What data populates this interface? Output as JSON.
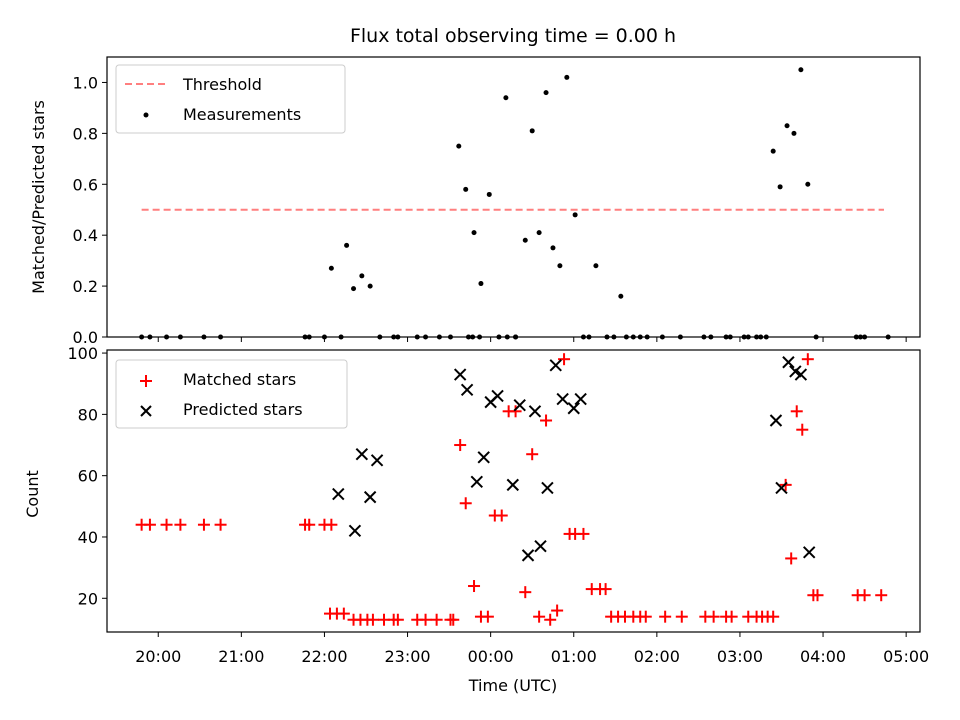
{
  "chart_data": [
    {
      "type": "scatter",
      "title": "Flux total observing time = 0.00 h",
      "xlabel": "",
      "ylabel": "Matched/Predicted stars",
      "xlim": [
        "19:23",
        "05:10"
      ],
      "ylim": [
        0,
        1.1
      ],
      "yticks": [
        0.0,
        0.2,
        0.4,
        0.6,
        0.8,
        1.0
      ],
      "ytick_labels": [
        "0.0",
        "0.2",
        "0.4",
        "0.6",
        "0.8",
        "1.0"
      ],
      "legend": "top-left",
      "grid": false,
      "series": [
        {
          "name": "Threshold",
          "kind": "line",
          "style": "dashed",
          "color": "#ff7f7f",
          "x": [
            "19:48",
            "04:44"
          ],
          "y": [
            0.5,
            0.5
          ]
        },
        {
          "name": "Measurements",
          "kind": "scatter",
          "marker": "dot",
          "color": "#000000",
          "points": [
            [
              "19:48",
              0
            ],
            [
              "19:54",
              0
            ],
            [
              "20:06",
              0
            ],
            [
              "20:16",
              0
            ],
            [
              "20:33",
              0
            ],
            [
              "20:45",
              0
            ],
            [
              "21:46",
              0
            ],
            [
              "21:49",
              0
            ],
            [
              "22:00",
              0
            ],
            [
              "22:12",
              0
            ],
            [
              "22:05",
              0.27
            ],
            [
              "22:16",
              0.36
            ],
            [
              "22:21",
              0.19
            ],
            [
              "22:27",
              0.24
            ],
            [
              "22:33",
              0.2
            ],
            [
              "22:40",
              0
            ],
            [
              "22:50",
              0
            ],
            [
              "22:53",
              0
            ],
            [
              "23:07",
              0
            ],
            [
              "23:13",
              0
            ],
            [
              "23:23",
              0
            ],
            [
              "23:31",
              0
            ],
            [
              "23:44",
              0
            ],
            [
              "23:47",
              0
            ],
            [
              "23:52",
              0
            ],
            [
              "23:37",
              0.75
            ],
            [
              "23:42",
              0.58
            ],
            [
              "23:48",
              0.41
            ],
            [
              "23:53",
              0.21
            ],
            [
              "23:59",
              0.56
            ],
            [
              "00:06",
              0
            ],
            [
              "00:12",
              0
            ],
            [
              "00:18",
              0
            ],
            [
              "00:11",
              0.94
            ],
            [
              "00:18",
              0
            ],
            [
              "00:25",
              0.38
            ],
            [
              "00:30",
              0.81
            ],
            [
              "00:35",
              0.41
            ],
            [
              "00:40",
              0.96
            ],
            [
              "00:45",
              0.35
            ],
            [
              "00:50",
              0.28
            ],
            [
              "00:55",
              1.02
            ],
            [
              "01:01",
              0.48
            ],
            [
              "01:07",
              0
            ],
            [
              "01:11",
              0
            ],
            [
              "01:16",
              0.28
            ],
            [
              "01:24",
              0
            ],
            [
              "01:29",
              0
            ],
            [
              "01:34",
              0.16
            ],
            [
              "01:38",
              0
            ],
            [
              "01:43",
              0
            ],
            [
              "01:48",
              0
            ],
            [
              "01:53",
              0
            ],
            [
              "02:04",
              0
            ],
            [
              "02:17",
              0
            ],
            [
              "02:34",
              0
            ],
            [
              "02:39",
              0
            ],
            [
              "02:50",
              0
            ],
            [
              "02:53",
              0
            ],
            [
              "03:03",
              0
            ],
            [
              "03:06",
              0
            ],
            [
              "03:12",
              0
            ],
            [
              "03:15",
              0
            ],
            [
              "03:19",
              0
            ],
            [
              "03:24",
              0.73
            ],
            [
              "03:29",
              0.59
            ],
            [
              "03:34",
              0.83
            ],
            [
              "03:39",
              0.8
            ],
            [
              "03:44",
              1.05
            ],
            [
              "03:49",
              0.6
            ],
            [
              "03:55",
              0
            ],
            [
              "04:24",
              0
            ],
            [
              "04:27",
              0
            ],
            [
              "04:30",
              0
            ],
            [
              "04:47",
              0
            ]
          ]
        }
      ]
    },
    {
      "type": "scatter",
      "title": "",
      "xlabel": "Time (UTC)",
      "ylabel": "Count",
      "xlim": [
        "19:23",
        "05:10"
      ],
      "ylim": [
        9,
        101
      ],
      "yticks": [
        20,
        40,
        60,
        80,
        100
      ],
      "ytick_labels": [
        "20",
        "40",
        "60",
        "80",
        "100"
      ],
      "xticks": [
        "20:00",
        "21:00",
        "22:00",
        "23:00",
        "00:00",
        "01:00",
        "02:00",
        "03:00",
        "04:00",
        "05:00"
      ],
      "xtick_labels": [
        "20:00",
        "21:00",
        "22:00",
        "23:00",
        "00:00",
        "01:00",
        "02:00",
        "03:00",
        "04:00",
        "05:00"
      ],
      "legend": "top-left",
      "grid": false,
      "series": [
        {
          "name": "Matched stars",
          "kind": "scatter",
          "marker": "plus",
          "color": "#ff0000",
          "points": [
            [
              "19:48",
              44
            ],
            [
              "19:54",
              44
            ],
            [
              "20:06",
              44
            ],
            [
              "20:16",
              44
            ],
            [
              "20:33",
              44
            ],
            [
              "20:45",
              44
            ],
            [
              "21:46",
              44
            ],
            [
              "21:49",
              44
            ],
            [
              "22:00",
              44
            ],
            [
              "22:05",
              44
            ],
            [
              "22:04",
              15
            ],
            [
              "22:09",
              15
            ],
            [
              "22:14",
              15
            ],
            [
              "22:21",
              13
            ],
            [
              "22:26",
              13
            ],
            [
              "22:31",
              13
            ],
            [
              "22:35",
              13
            ],
            [
              "22:43",
              13
            ],
            [
              "22:50",
              13
            ],
            [
              "22:53",
              13
            ],
            [
              "23:07",
              13
            ],
            [
              "23:13",
              13
            ],
            [
              "23:21",
              13
            ],
            [
              "23:31",
              13
            ],
            [
              "23:33",
              13
            ],
            [
              "23:38",
              70
            ],
            [
              "23:42",
              51
            ],
            [
              "23:48",
              24
            ],
            [
              "23:53",
              14
            ],
            [
              "23:58",
              14
            ],
            [
              "00:03",
              47
            ],
            [
              "00:08",
              47
            ],
            [
              "00:13",
              81
            ],
            [
              "00:18",
              81
            ],
            [
              "00:25",
              22
            ],
            [
              "00:30",
              67
            ],
            [
              "00:35",
              14
            ],
            [
              "00:40",
              78
            ],
            [
              "00:43",
              13
            ],
            [
              "00:48",
              16
            ],
            [
              "00:53",
              98
            ],
            [
              "00:57",
              41
            ],
            [
              "01:01",
              41
            ],
            [
              "01:07",
              41
            ],
            [
              "01:13",
              23
            ],
            [
              "01:19",
              23
            ],
            [
              "01:23",
              23
            ],
            [
              "01:27",
              14
            ],
            [
              "01:32",
              14
            ],
            [
              "01:37",
              14
            ],
            [
              "01:43",
              14
            ],
            [
              "01:48",
              14
            ],
            [
              "01:52",
              14
            ],
            [
              "02:06",
              14
            ],
            [
              "02:18",
              14
            ],
            [
              "02:35",
              14
            ],
            [
              "02:41",
              14
            ],
            [
              "02:50",
              14
            ],
            [
              "02:54",
              14
            ],
            [
              "03:06",
              14
            ],
            [
              "03:12",
              14
            ],
            [
              "03:16",
              14
            ],
            [
              "03:20",
              14
            ],
            [
              "03:24",
              14
            ],
            [
              "03:33",
              57
            ],
            [
              "03:37",
              33
            ],
            [
              "03:41",
              81
            ],
            [
              "03:45",
              75
            ],
            [
              "03:49",
              98
            ],
            [
              "03:53",
              21
            ],
            [
              "03:56",
              21
            ],
            [
              "04:25",
              21
            ],
            [
              "04:30",
              21
            ],
            [
              "04:42",
              21
            ]
          ]
        },
        {
          "name": "Predicted stars",
          "kind": "scatter",
          "marker": "x",
          "color": "#000000",
          "points": [
            [
              "22:10",
              54
            ],
            [
              "22:22",
              42
            ],
            [
              "22:27",
              67
            ],
            [
              "22:33",
              53
            ],
            [
              "22:38",
              65
            ],
            [
              "23:38",
              93
            ],
            [
              "23:43",
              88
            ],
            [
              "23:50",
              58
            ],
            [
              "23:55",
              66
            ],
            [
              "00:00",
              84
            ],
            [
              "00:05",
              86
            ],
            [
              "00:16",
              57
            ],
            [
              "00:21",
              83
            ],
            [
              "00:27",
              34
            ],
            [
              "00:32",
              81
            ],
            [
              "00:36",
              37
            ],
            [
              "00:41",
              56
            ],
            [
              "00:47",
              96
            ],
            [
              "00:52",
              85
            ],
            [
              "01:00",
              82
            ],
            [
              "01:05",
              85
            ],
            [
              "03:26",
              78
            ],
            [
              "03:30",
              56
            ],
            [
              "03:35",
              97
            ],
            [
              "03:40",
              94
            ],
            [
              "03:44",
              93
            ],
            [
              "03:50",
              35
            ]
          ]
        }
      ]
    }
  ]
}
